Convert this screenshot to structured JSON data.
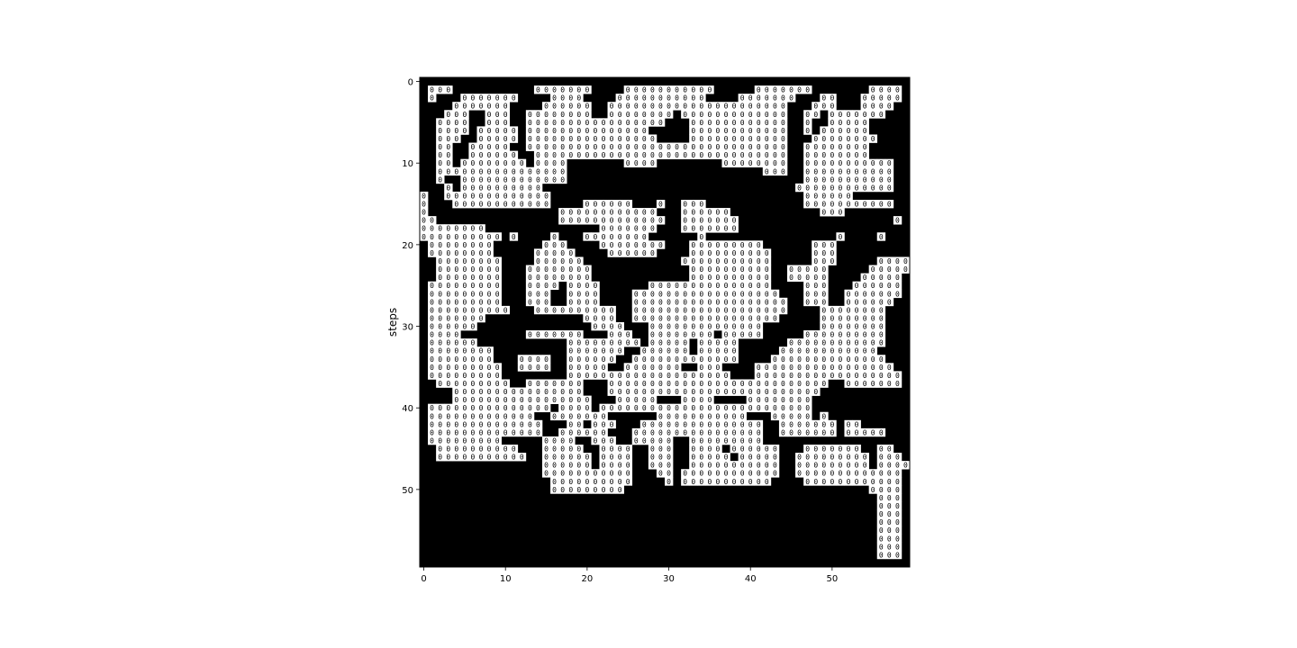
{
  "chart_data": {
    "type": "heatmap",
    "title": "",
    "xlabel": "",
    "ylabel": "steps",
    "colormap": {
      "0": "#000000",
      "1": "#ffffff"
    },
    "cell_marker_on_white": "0",
    "x_ticks": [
      "0",
      "10",
      "20",
      "30",
      "40",
      "50"
    ],
    "y_ticks": [
      "0",
      "10",
      "20",
      "30",
      "40",
      "50"
    ],
    "xlim": [
      -0.5,
      59.5
    ],
    "ylim": [
      59.5,
      -0.5
    ],
    "grid": false,
    "rows": 60,
    "cols": 60,
    "matrix": [
      "000000000000000000000000000000000000000000000000000000000000",
      "011100000000001111111000011111111111000001111111000000011110",
      "010001111111000011110000111111111110000111111100011000111110",
      "000011111110000111111001111111111111111111111000111000111100",
      "000111001110011111111001111111101111111111111001101111111000",
      "001111001110011111111111111111000111111111111001001111100000",
      "001111011111011111111111111100000111111111111001011111100000",
      "001110011111011111111111111110000111111111111000111111110000",
      "001100111110011111111111111111111111111111111001111111100000",
      "001100111111001111111111111111111111111111111001111111100000",
      "001101111111101111000000011110000000011111111001111111111100",
      "001111111111111111000000000000000000000000111001111111111100",
      "001001111111111111000000000000000000000000000001111111111100",
      "000101111111111000000000000000000000000000000011111111111100",
      "100111111111111100000000000000000000000000000001111110000000",
      "100011111111111100001111110001001110000000000001111111111100",
      "100000000000000001111111111110001111110000000000011100000000",
      "110000000000000001111111111111001111111000000000000000000010",
      "111111110000000000000011111110001111111000000000000000000000",
      "111111111101000010001111111100000010000000000000000100001000",
      "011111111000000111000011111111000111111111000000111000000000",
      "011111111000001111100001111110000111111111100000111000000000",
      "001111111100001111110000000000001111111111100000111000001111",
      "001111111100011111111000000000000111111111100111110000011111",
      "001111111100011111111000000000000111111111100111110000111110",
      "011111111100011110111100000011111111111111100001110001111110",
      "011111111100011100111100001111111111111111110001110011111110",
      "011111111100011100111100001111111111111111111001110011111100",
      "011111111110001111111111001111111111111111111000011111111000",
      "011111110000000000001111001111111111111111110000011111111000",
      "011111100000000000000111100011111111111111000000011111111000",
      "011110000000011111110001110011111111011111000001111111111000",
      "011111100000000000111111111011111011111000000111111111111000",
      "011111111000000000111111100111111011111000001111111111110000",
      "011111111000111100111111001111111111111000011111111111111000",
      "011111111100111100111110011111110011100001111111111111111100",
      "011111111100000000111111111111111111110001111111111111111110",
      "001111111110011111110001111111111111111111111111110011111110",
      "000011111111111111110001111111111111111111111111100000000000",
      "000011111111111111111000111110001111000011111111000000000000",
      "011111111111111101111011111111111111111111111111000000000000",
      "011111111111110011111110000001111111111100011111010000000000",
      "011111111111111000110111000111111111111111001111111011000000",
      "011111111111111001111110001111111111111111001111111011111000",
      "011111111100000111100111001111100111111111000000000000000000",
      "001111111111000111110011110011100111101111110001111111001100",
      "001111111111100111111011110011100111110111110011111111101110",
      "000000000000000111111011110011100111111111110011111111101111",
      "000000000000000111111111110001101111111111110011111111111110",
      "000000000000000011111111110000101111111111100001111111111110",
      "000000000000000011111111100000000000000000000000000000011110",
      "000000000000000000000000000000000000000000000000000000001110",
      "000000000000000000000000000000000000000000000000000000001110",
      "000000000000000000000000000000000000000000000000000000001110",
      "000000000000000000000000000000000000000000000000000000001110",
      "000000000000000000000000000000000000000000000000000000001110",
      "000000000000000000000000000000000000000000000000000000001110",
      "000000000000000000000000000000000000000000000000000000001110",
      "000000000000000000000000000000000000000000000000000000001110",
      "000000000000000000000000000000000000000000000000000000000000"
    ]
  }
}
